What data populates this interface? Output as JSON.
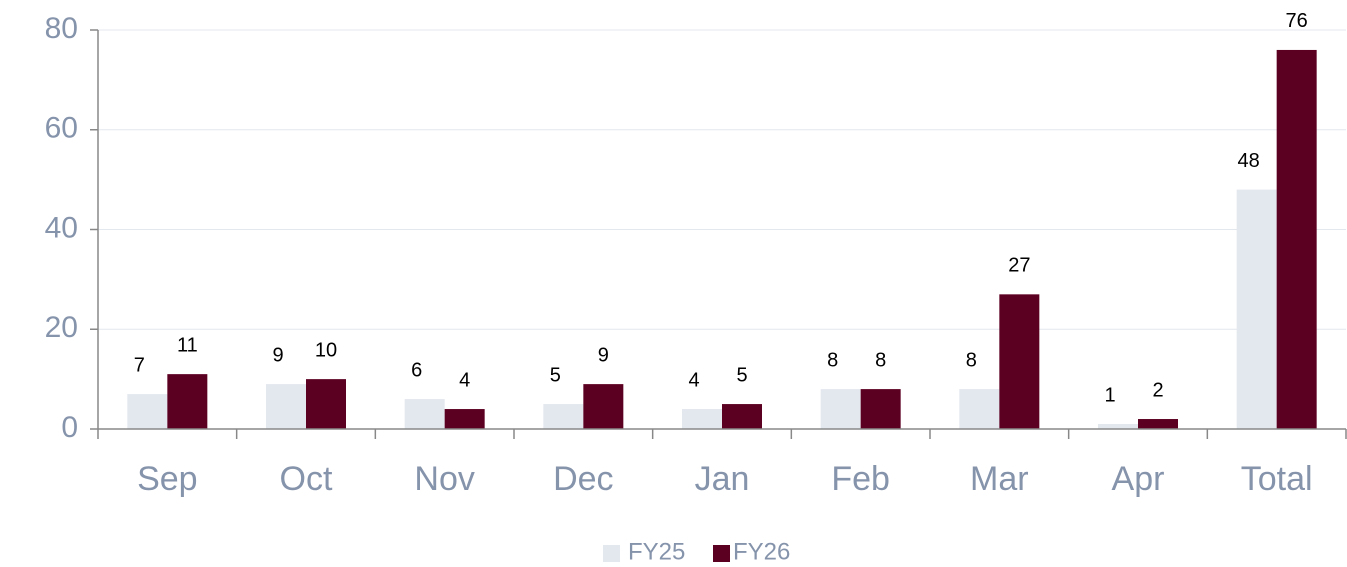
{
  "chart_data": {
    "type": "bar",
    "categories": [
      "Sep",
      "Oct",
      "Nov",
      "Dec",
      "Jan",
      "Feb",
      "Mar",
      "Apr",
      "Total"
    ],
    "series": [
      {
        "name": "FY25",
        "color": "#e3e7ee",
        "values": [
          7,
          9,
          6,
          5,
          4,
          8,
          8,
          1,
          48
        ]
      },
      {
        "name": "FY26",
        "color": "#5c0022",
        "values": [
          11,
          10,
          4,
          9,
          5,
          8,
          27,
          2,
          76
        ]
      }
    ],
    "ylim": [
      0,
      80
    ],
    "yticks": [
      0,
      20,
      40,
      60,
      80
    ],
    "grid": true,
    "legend": "bottom"
  }
}
